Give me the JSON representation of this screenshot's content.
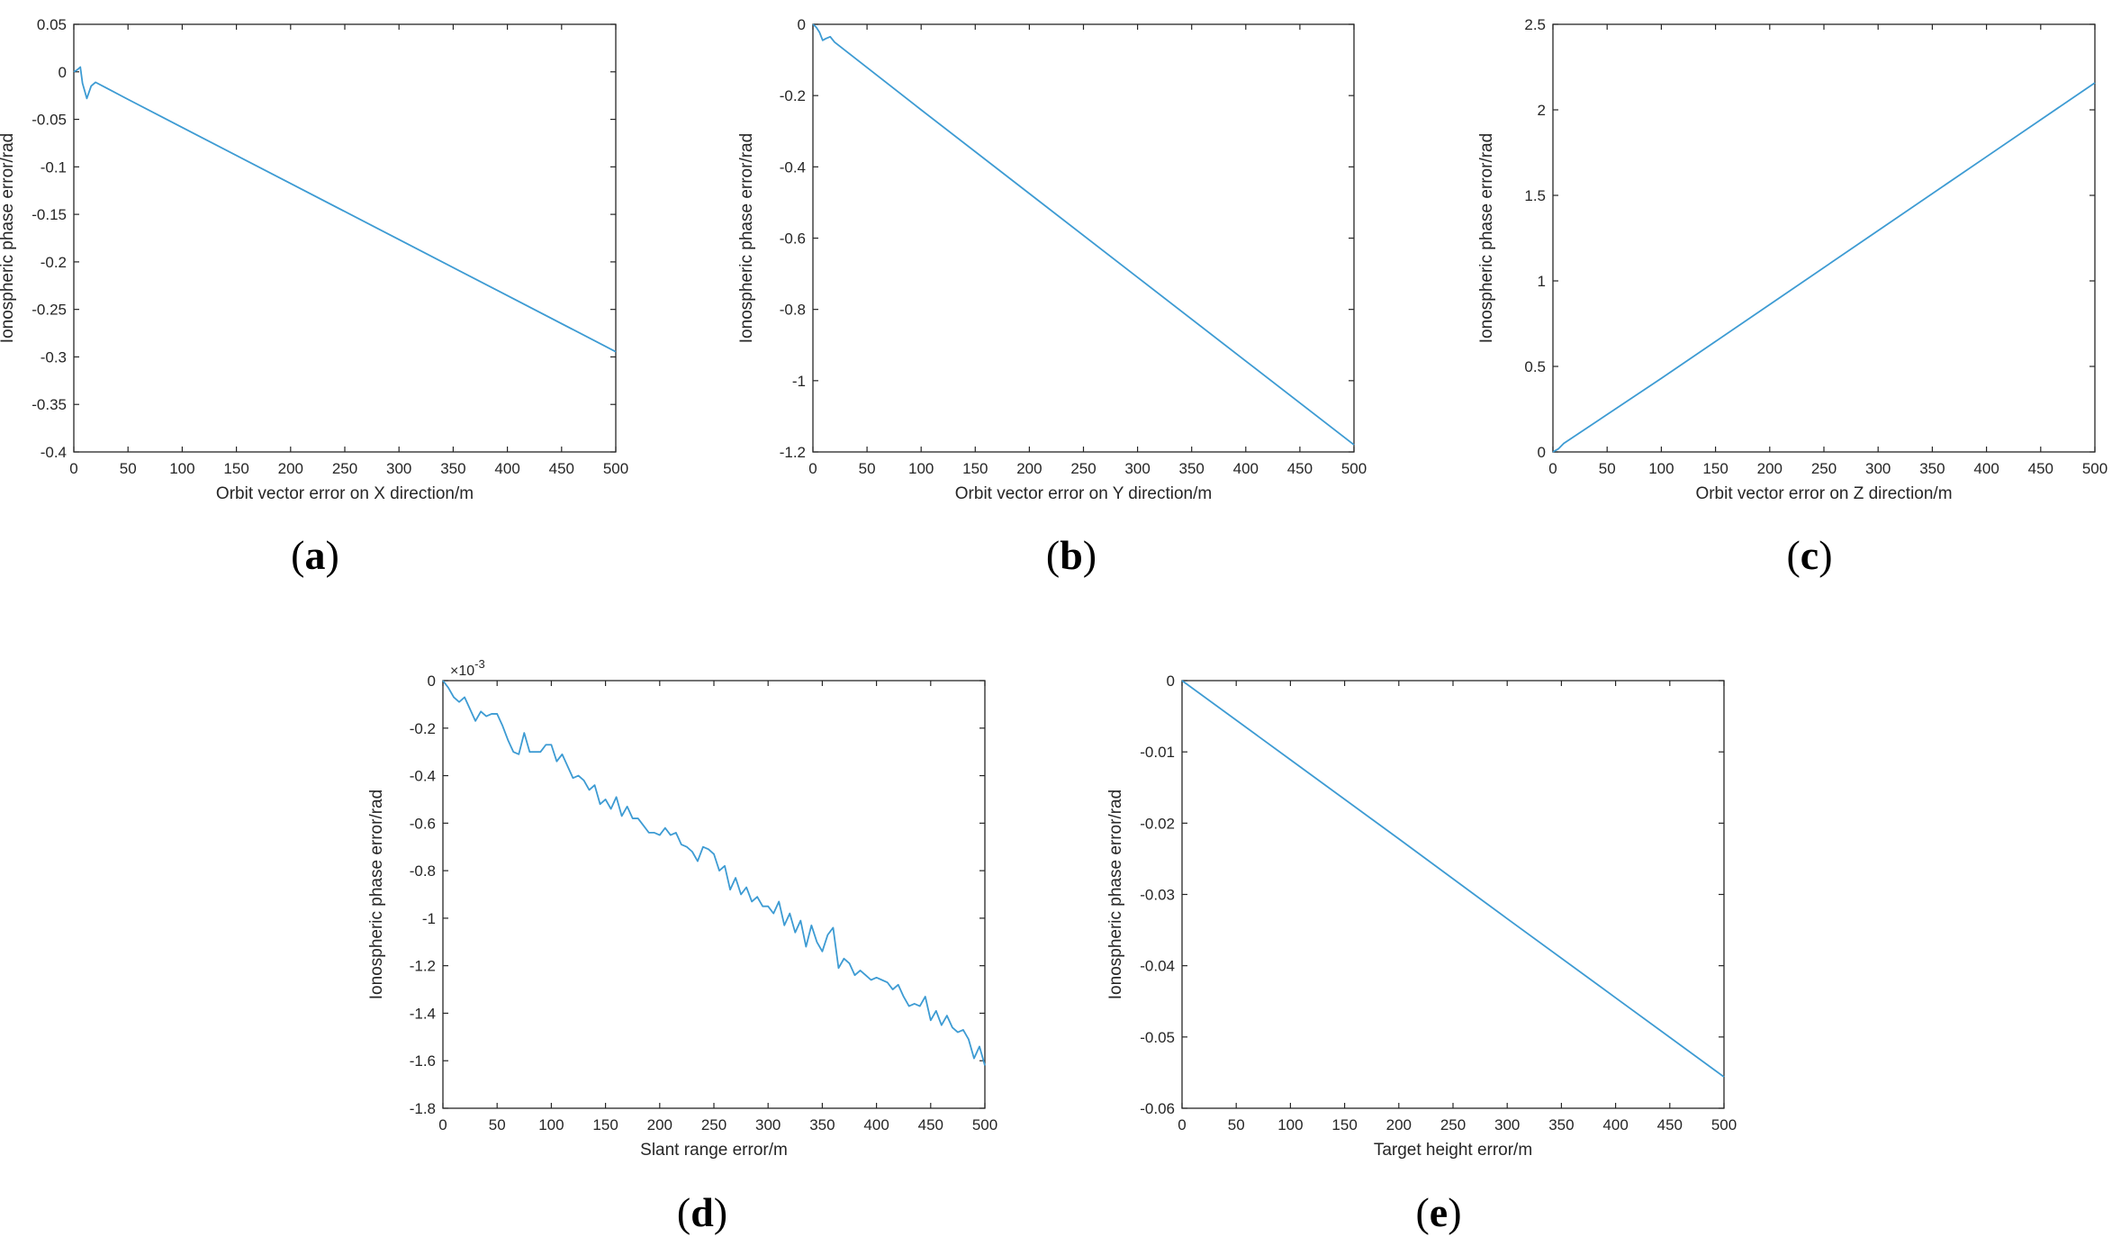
{
  "colors": {
    "series": "#3d9bd3",
    "axis": "#262626",
    "background": "#ffffff"
  },
  "chart_data": [
    {
      "panel": "(a)",
      "panel_letter": "a",
      "type": "line",
      "xlabel": "Orbit vector error on X direction/m",
      "ylabel": "Ionospheric phase error/rad",
      "xlim": [
        0,
        500
      ],
      "ylim": [
        -0.4,
        0.05
      ],
      "xticks": [
        0,
        50,
        100,
        150,
        200,
        250,
        300,
        350,
        400,
        450,
        500
      ],
      "yticks": [
        -0.4,
        -0.35,
        -0.3,
        -0.25,
        -0.2,
        -0.15,
        -0.1,
        -0.05,
        0,
        0.05
      ],
      "xtick_labels": [
        "0",
        "50",
        "100",
        "150",
        "200",
        "250",
        "300",
        "350",
        "400",
        "450",
        "500"
      ],
      "ytick_labels": [
        "-0.4",
        "-0.35",
        "-0.3",
        "-0.25",
        "-0.2",
        "-0.15",
        "-0.1",
        "-0.05",
        "0",
        "0.05"
      ],
      "grid": false,
      "series": [
        {
          "x": [
            0,
            3,
            6,
            8,
            12,
            16,
            20,
            30,
            50,
            100,
            200,
            300,
            400,
            500
          ],
          "values": [
            0,
            0.002,
            0.005,
            -0.012,
            -0.028,
            -0.015,
            -0.011,
            -0.017,
            -0.029,
            -0.0585,
            -0.1175,
            -0.1765,
            -0.2355,
            -0.2945
          ]
        }
      ]
    },
    {
      "panel": "(b)",
      "panel_letter": "b",
      "type": "line",
      "xlabel": "Orbit vector error on Y direction/m",
      "ylabel": "Ionospheric phase error/rad",
      "xlim": [
        0,
        500
      ],
      "ylim": [
        -1.2,
        0
      ],
      "xticks": [
        0,
        50,
        100,
        150,
        200,
        250,
        300,
        350,
        400,
        450,
        500
      ],
      "yticks": [
        -1.2,
        -1,
        -0.8,
        -0.6,
        -0.4,
        -0.2,
        0
      ],
      "xtick_labels": [
        "0",
        "50",
        "100",
        "150",
        "200",
        "250",
        "300",
        "350",
        "400",
        "450",
        "500"
      ],
      "ytick_labels": [
        "-1.2",
        "-1",
        "-0.8",
        "-0.6",
        "-0.4",
        "-0.2",
        "0"
      ],
      "grid": false,
      "series": [
        {
          "x": [
            0,
            3,
            6,
            9,
            12,
            16,
            20,
            100,
            200,
            300,
            400,
            500
          ],
          "values": [
            0,
            -0.008,
            -0.022,
            -0.045,
            -0.04,
            -0.035,
            -0.05,
            -0.24,
            -0.475,
            -0.71,
            -0.945,
            -1.18
          ]
        }
      ]
    },
    {
      "panel": "(c)",
      "panel_letter": "c",
      "type": "line",
      "xlabel": "Orbit vector error on Z direction/m",
      "ylabel": "Ionospheric phase error/rad",
      "xlim": [
        0,
        500
      ],
      "ylim": [
        0,
        2.5
      ],
      "xticks": [
        0,
        50,
        100,
        150,
        200,
        250,
        300,
        350,
        400,
        450,
        500
      ],
      "yticks": [
        0,
        0.5,
        1,
        1.5,
        2,
        2.5
      ],
      "xtick_labels": [
        "0",
        "50",
        "100",
        "150",
        "200",
        "250",
        "300",
        "350",
        "400",
        "450",
        "500"
      ],
      "ytick_labels": [
        "0",
        "0.5",
        "1",
        "1.5",
        "2",
        "2.5"
      ],
      "grid": false,
      "series": [
        {
          "x": [
            0,
            5,
            10,
            100,
            200,
            300,
            400,
            500
          ],
          "values": [
            0,
            0.018,
            0.05,
            0.43,
            0.862,
            1.294,
            1.726,
            2.158
          ]
        }
      ]
    },
    {
      "panel": "(d)",
      "panel_letter": "d",
      "type": "line",
      "xlabel": "Slant range error/m",
      "ylabel": "Ionospheric phase error/rad",
      "exponent_label": "×10",
      "exponent_power": "-3",
      "xlim": [
        0,
        500
      ],
      "ylim": [
        -1.8,
        0
      ],
      "xticks": [
        0,
        50,
        100,
        150,
        200,
        250,
        300,
        350,
        400,
        450,
        500
      ],
      "yticks": [
        -1.8,
        -1.6,
        -1.4,
        -1.2,
        -1,
        -0.8,
        -0.6,
        -0.4,
        -0.2,
        0
      ],
      "xtick_labels": [
        "0",
        "50",
        "100",
        "150",
        "200",
        "250",
        "300",
        "350",
        "400",
        "450",
        "500"
      ],
      "ytick_labels": [
        "-1.8",
        "-1.6",
        "-1.4",
        "-1.2",
        "-1",
        "-0.8",
        "-0.6",
        "-0.4",
        "-0.2",
        "0"
      ],
      "grid": false,
      "series": [
        {
          "x": [
            0,
            5,
            10,
            15,
            20,
            25,
            30,
            35,
            40,
            45,
            50,
            55,
            60,
            65,
            70,
            75,
            80,
            85,
            90,
            95,
            100,
            105,
            110,
            115,
            120,
            125,
            130,
            135,
            140,
            145,
            150,
            155,
            160,
            165,
            170,
            175,
            180,
            185,
            190,
            195,
            200,
            205,
            210,
            215,
            220,
            225,
            230,
            235,
            240,
            245,
            250,
            255,
            260,
            265,
            270,
            275,
            280,
            285,
            290,
            295,
            300,
            305,
            310,
            315,
            320,
            325,
            330,
            335,
            340,
            345,
            350,
            355,
            360,
            365,
            370,
            375,
            380,
            385,
            390,
            395,
            400,
            405,
            410,
            415,
            420,
            425,
            430,
            435,
            440,
            445,
            450,
            455,
            460,
            465,
            470,
            475,
            480,
            485,
            490,
            495,
            500
          ],
          "values": [
            0,
            -0.03,
            -0.07,
            -0.09,
            -0.07,
            -0.12,
            -0.17,
            -0.13,
            -0.15,
            -0.14,
            -0.14,
            -0.19,
            -0.25,
            -0.3,
            -0.31,
            -0.22,
            -0.3,
            -0.3,
            -0.3,
            -0.27,
            -0.27,
            -0.34,
            -0.31,
            -0.36,
            -0.41,
            -0.4,
            -0.42,
            -0.46,
            -0.44,
            -0.52,
            -0.5,
            -0.54,
            -0.49,
            -0.57,
            -0.53,
            -0.58,
            -0.58,
            -0.61,
            -0.64,
            -0.64,
            -0.65,
            -0.62,
            -0.65,
            -0.64,
            -0.69,
            -0.7,
            -0.72,
            -0.76,
            -0.7,
            -0.71,
            -0.73,
            -0.8,
            -0.78,
            -0.88,
            -0.83,
            -0.9,
            -0.87,
            -0.93,
            -0.91,
            -0.95,
            -0.95,
            -0.98,
            -0.93,
            -1.03,
            -0.98,
            -1.06,
            -1.01,
            -1.12,
            -1.03,
            -1.1,
            -1.14,
            -1.07,
            -1.04,
            -1.21,
            -1.17,
            -1.19,
            -1.24,
            -1.22,
            -1.24,
            -1.26,
            -1.25,
            -1.26,
            -1.27,
            -1.3,
            -1.28,
            -1.33,
            -1.37,
            -1.36,
            -1.37,
            -1.33,
            -1.43,
            -1.39,
            -1.45,
            -1.41,
            -1.46,
            -1.48,
            -1.47,
            -1.51,
            -1.59,
            -1.54,
            -1.62
          ]
        }
      ]
    },
    {
      "panel": "(e)",
      "panel_letter": "e",
      "type": "line",
      "xlabel": "Target height error/m",
      "ylabel": "Ionospheric phase error/rad",
      "xlim": [
        0,
        500
      ],
      "ylim": [
        -0.06,
        0
      ],
      "xticks": [
        0,
        50,
        100,
        150,
        200,
        250,
        300,
        350,
        400,
        450,
        500
      ],
      "yticks": [
        -0.06,
        -0.05,
        -0.04,
        -0.03,
        -0.02,
        -0.01,
        0
      ],
      "xtick_labels": [
        "0",
        "50",
        "100",
        "150",
        "200",
        "250",
        "300",
        "350",
        "400",
        "450",
        "500"
      ],
      "ytick_labels": [
        "-0.06",
        "-0.05",
        "-0.04",
        "-0.03",
        "-0.02",
        "-0.01",
        "0"
      ],
      "grid": false,
      "series": [
        {
          "x": [
            0,
            100,
            200,
            300,
            400,
            500
          ],
          "values": [
            0,
            -0.0111,
            -0.0222,
            -0.0334,
            -0.0445,
            -0.0556
          ]
        }
      ]
    }
  ]
}
